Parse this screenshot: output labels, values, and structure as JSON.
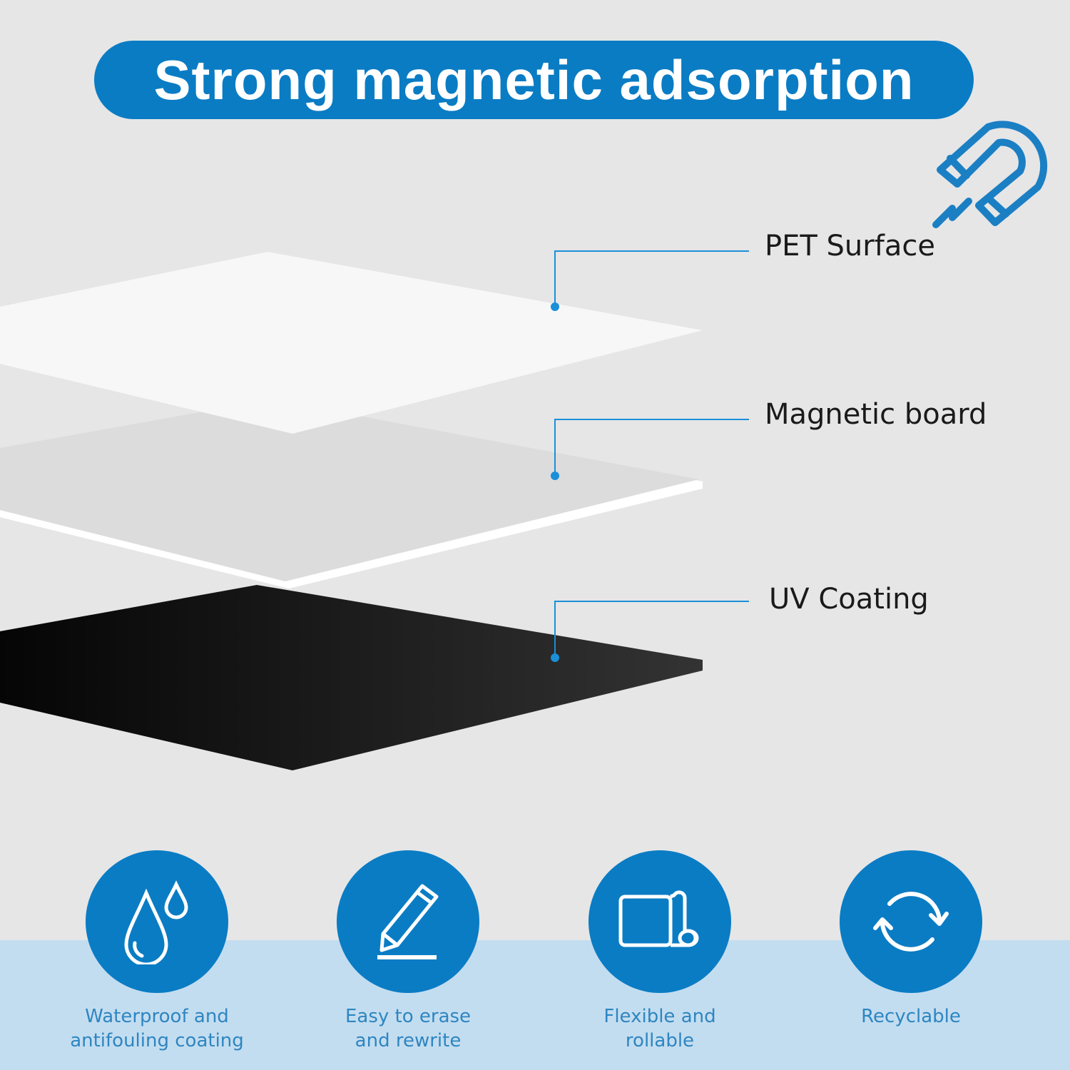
{
  "title": "Strong magnetic adsorption",
  "colors": {
    "accent": "#0a7cc4",
    "background": "#e6e6e6",
    "band": "#c3ddf0",
    "feature_text": "#2e86c1"
  },
  "icons": {
    "header": "magnet-icon"
  },
  "layers": [
    {
      "label": "PET Surface"
    },
    {
      "label": "Magnetic board"
    },
    {
      "label": "UV Coating"
    }
  ],
  "features": [
    {
      "icon": "water-drop-icon",
      "line1": "Waterproof and",
      "line2": "antifouling coating"
    },
    {
      "icon": "pencil-icon",
      "line1": "Easy to erase",
      "line2": "and rewrite"
    },
    {
      "icon": "roll-icon",
      "line1": "Flexible and",
      "line2": "rollable"
    },
    {
      "icon": "recycle-icon",
      "line1": "Recyclable",
      "line2": ""
    }
  ]
}
